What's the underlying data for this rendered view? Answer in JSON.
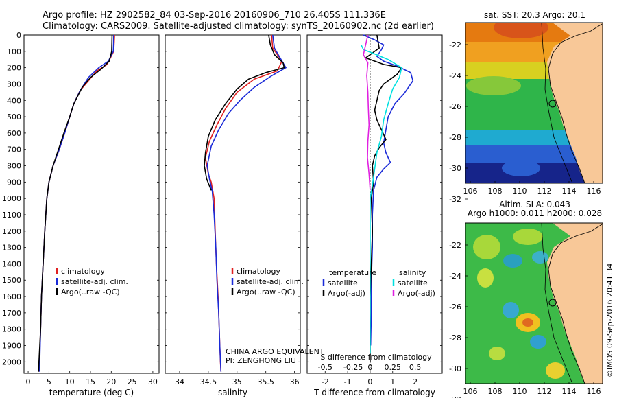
{
  "header": {
    "line1": "Argo profile: HZ 2902582_84 03-Sep-2016 20160906_710 26.405S 111.336E",
    "line2": "Climatology: CARS2009. Satellite-adjusted climatology: synTS_20160902.nc (2d earlier)"
  },
  "colors": {
    "climatology": "#e02020",
    "satellite_adj": "#1a2ad8",
    "argo": "#000000",
    "satellite_s": "#00e0e0",
    "argo_s": "#e020e0",
    "land": "#f8c898"
  },
  "chart_data": [
    {
      "type": "line",
      "id": "temperature",
      "xlabel": "temperature (deg C)",
      "ylabel": "",
      "xlim": [
        -1,
        31.5
      ],
      "ylim": [
        2070,
        0
      ],
      "xticks": [
        0,
        5,
        10,
        15,
        20,
        25,
        30
      ],
      "yticks": [
        0,
        100,
        200,
        300,
        400,
        500,
        600,
        700,
        800,
        900,
        1000,
        1100,
        1200,
        1300,
        1400,
        1500,
        1600,
        1700,
        1800,
        1900,
        2000
      ],
      "legend": [
        "climatology",
        "satellite-adj. clim.",
        "Argo(..raw -QC)"
      ],
      "legend_position": "lower-middle",
      "series": [
        {
          "name": "climatology",
          "color_key": "climatology",
          "points": [
            [
              20.8,
              0
            ],
            [
              20.6,
              100
            ],
            [
              19,
              180
            ],
            [
              16.5,
              220
            ],
            [
              14.5,
              280
            ],
            [
              12.5,
              340
            ],
            [
              11,
              420
            ],
            [
              10,
              500
            ],
            [
              8.8,
              600
            ],
            [
              7.5,
              700
            ],
            [
              6,
              800
            ],
            [
              5,
              900
            ],
            [
              4.5,
              1000
            ],
            [
              4,
              1200
            ],
            [
              3.6,
              1400
            ],
            [
              3.2,
              1600
            ],
            [
              3,
              1800
            ],
            [
              2.7,
              2000
            ],
            [
              2.6,
              2060
            ]
          ]
        },
        {
          "name": "satellite-adj. clim.",
          "color_key": "satellite_adj",
          "points": [
            [
              20.6,
              0
            ],
            [
              20.5,
              100
            ],
            [
              19.3,
              160
            ],
            [
              17,
              200
            ],
            [
              14.5,
              260
            ],
            [
              12.5,
              340
            ],
            [
              11,
              420
            ],
            [
              10,
              500
            ],
            [
              8.8,
              600
            ],
            [
              7.5,
              700
            ],
            [
              6,
              800
            ],
            [
              5,
              900
            ],
            [
              4.5,
              1000
            ],
            [
              4,
              1200
            ],
            [
              3.6,
              1400
            ],
            [
              3.2,
              1600
            ],
            [
              3,
              1800
            ],
            [
              2.8,
              2000
            ],
            [
              2.7,
              2060
            ]
          ]
        },
        {
          "name": "Argo(..raw -QC)",
          "color_key": "argo",
          "points": [
            [
              20.2,
              0
            ],
            [
              20.1,
              100
            ],
            [
              19.5,
              160
            ],
            [
              17.5,
              210
            ],
            [
              15,
              260
            ],
            [
              13,
              320
            ],
            [
              11,
              420
            ],
            [
              10,
              500
            ],
            [
              8.6,
              600
            ],
            [
              7.3,
              700
            ],
            [
              6,
              800
            ],
            [
              5,
              900
            ],
            [
              4.5,
              1000
            ],
            [
              4,
              1200
            ],
            [
              3.6,
              1400
            ],
            [
              3.2,
              1600
            ],
            [
              3,
              1800
            ],
            [
              2.6,
              2000
            ],
            [
              2.5,
              2060
            ]
          ]
        }
      ]
    },
    {
      "type": "line",
      "id": "salinity",
      "xlabel": "salinity",
      "ylabel": "",
      "xlim": [
        33.75,
        36.1
      ],
      "ylim": [
        2070,
        0
      ],
      "xticks": [
        34,
        34.5,
        35,
        35.5,
        36
      ],
      "legend": [
        "climatology",
        "satellite-adj. clim.",
        "Argo(..raw -QC)"
      ],
      "legend_position": "lower-right",
      "annotations": [
        "CHINA ARGO EQUIVALENT",
        "PI: ZENGHONG LIU"
      ],
      "series": [
        {
          "name": "climatology",
          "color_key": "climatology",
          "points": [
            [
              35.6,
              0
            ],
            [
              35.62,
              80
            ],
            [
              35.78,
              160
            ],
            [
              35.7,
              220
            ],
            [
              35.3,
              270
            ],
            [
              35,
              350
            ],
            [
              34.8,
              450
            ],
            [
              34.65,
              550
            ],
            [
              34.52,
              650
            ],
            [
              34.45,
              750
            ],
            [
              34.5,
              850
            ],
            [
              34.55,
              900
            ],
            [
              34.6,
              1000
            ],
            [
              34.62,
              1200
            ],
            [
              34.64,
              1400
            ],
            [
              34.67,
              1600
            ],
            [
              34.69,
              1800
            ],
            [
              34.71,
              2000
            ],
            [
              34.72,
              2060
            ]
          ]
        },
        {
          "name": "satellite-adj. clim.",
          "color_key": "satellite_adj",
          "points": [
            [
              35.62,
              0
            ],
            [
              35.65,
              80
            ],
            [
              35.85,
              200
            ],
            [
              35.6,
              250
            ],
            [
              35.3,
              320
            ],
            [
              35.05,
              400
            ],
            [
              34.85,
              480
            ],
            [
              34.68,
              580
            ],
            [
              34.55,
              680
            ],
            [
              34.48,
              800
            ],
            [
              34.52,
              880
            ],
            [
              34.57,
              960
            ],
            [
              34.6,
              1100
            ],
            [
              34.63,
              1300
            ],
            [
              34.65,
              1500
            ],
            [
              34.68,
              1700
            ],
            [
              34.7,
              1900
            ],
            [
              34.72,
              2060
            ]
          ]
        },
        {
          "name": "Argo(..raw -QC)",
          "color_key": "argo",
          "points": [
            [
              35.55,
              0
            ],
            [
              35.58,
              60
            ],
            [
              35.65,
              120
            ],
            [
              35.8,
              170
            ],
            [
              35.82,
              200
            ],
            [
              35.5,
              230
            ],
            [
              35.2,
              270
            ],
            [
              35,
              330
            ],
            [
              34.8,
              420
            ],
            [
              34.62,
              520
            ],
            [
              34.5,
              620
            ],
            [
              34.45,
              720
            ],
            [
              34.43,
              800
            ],
            [
              34.47,
              880
            ],
            [
              34.55,
              950
            ]
          ]
        }
      ]
    },
    {
      "type": "line",
      "id": "difference",
      "xlabel": "T difference from climatology",
      "xlabel_top": "S difference from climatology",
      "ylabel": "",
      "xlim": [
        -2.8,
        3.2
      ],
      "ylim": [
        2070,
        0
      ],
      "xticks": [
        -2,
        -1,
        0,
        1,
        2
      ],
      "xtick_labels_s": [
        "-0.5",
        "-0.25",
        "0",
        "0.25",
        "0.5"
      ],
      "legend": {
        "temperature": "temperature",
        "salinity": "salinity",
        "items": [
          "satellite",
          "Argo(-adj)",
          "satellite",
          "Argo(-adj)"
        ]
      },
      "legend_position": "lower-middle",
      "series": [
        {
          "name": "satellite",
          "color_key": "satellite_adj",
          "points": [
            [
              -0.3,
              0
            ],
            [
              0.2,
              30
            ],
            [
              0.6,
              60
            ],
            [
              0.5,
              90
            ],
            [
              0.3,
              130
            ],
            [
              0.6,
              160
            ],
            [
              1.2,
              190
            ],
            [
              1.8,
              230
            ],
            [
              1.9,
              280
            ],
            [
              1.5,
              360
            ],
            [
              1.1,
              420
            ],
            [
              0.8,
              500
            ],
            [
              0.7,
              580
            ],
            [
              0.6,
              660
            ],
            [
              0.7,
              720
            ],
            [
              0.9,
              780
            ],
            [
              0.6,
              820
            ],
            [
              0.3,
              870
            ],
            [
              0.15,
              950
            ],
            [
              0.1,
              1100
            ],
            [
              0.1,
              1300
            ],
            [
              0.05,
              1500
            ],
            [
              0.05,
              1700
            ],
            [
              0.02,
              1900
            ]
          ]
        },
        {
          "name": "Argo(-adj)",
          "color_key": "argo",
          "points": [
            [
              0.3,
              0
            ],
            [
              0.4,
              80
            ],
            [
              -0.2,
              140
            ],
            [
              0.6,
              180
            ],
            [
              1.4,
              200
            ],
            [
              1.2,
              240
            ],
            [
              0.9,
              270
            ],
            [
              0.6,
              300
            ],
            [
              0.4,
              340
            ],
            [
              0.3,
              400
            ],
            [
              0.2,
              460
            ],
            [
              0.3,
              520
            ],
            [
              0.5,
              580
            ],
            [
              0.7,
              640
            ],
            [
              0.4,
              690
            ],
            [
              0.2,
              740
            ],
            [
              0.1,
              800
            ],
            [
              0.15,
              900
            ],
            [
              0.05,
              1000
            ],
            [
              0.1,
              1200
            ],
            [
              0.05,
              1400
            ],
            [
              0,
              1600
            ],
            [
              0,
              1800
            ],
            [
              0,
              2000
            ]
          ]
        },
        {
          "name": "satellite (S)",
          "color_key": "satellite_s",
          "points": [
            [
              -0.4,
              60
            ],
            [
              -0.3,
              90
            ],
            [
              0.1,
              110
            ],
            [
              0.8,
              150
            ],
            [
              1.4,
              200
            ],
            [
              1.3,
              260
            ],
            [
              1.0,
              330
            ],
            [
              0.8,
              420
            ],
            [
              0.6,
              520
            ],
            [
              0.5,
              620
            ],
            [
              0.3,
              720
            ],
            [
              0.2,
              820
            ],
            [
              0.1,
              920
            ],
            [
              0,
              1000
            ],
            [
              0,
              1200
            ],
            [
              0,
              1400
            ],
            [
              0,
              1600
            ],
            [
              0,
              1800
            ],
            [
              0,
              1950
            ]
          ]
        },
        {
          "name": "Argo(-adj) (S)",
          "color_key": "argo_s",
          "points": [
            [
              -0.1,
              0
            ],
            [
              -0.3,
              120
            ],
            [
              -0.1,
              170
            ],
            [
              -0.15,
              250
            ],
            [
              -0.1,
              350
            ],
            [
              -0.08,
              450
            ],
            [
              -0.05,
              550
            ],
            [
              -0.1,
              650
            ],
            [
              -0.12,
              750
            ],
            [
              -0.05,
              850
            ],
            [
              0,
              950
            ]
          ]
        }
      ]
    }
  ],
  "maps": [
    {
      "title": "sat. SST: 20.3  Argo: 20.1",
      "xticks": [
        "106",
        "108",
        "110",
        "112",
        "114",
        "116"
      ],
      "yticks": [
        "-22",
        "-24",
        "-26",
        "-28",
        "-30",
        "-32"
      ]
    },
    {
      "title_line1": "Altim. SLA: 0.043",
      "title_line2": "Argo h1000: 0.011  h2000: 0.028",
      "xticks": [
        "106",
        "108",
        "110",
        "112",
        "114",
        "116"
      ],
      "yticks": [
        "-22",
        "-24",
        "-26",
        "-28",
        "-30",
        "-32"
      ]
    }
  ],
  "footer": {
    "credit": "©IMOS 09-Sep-2016 20:41:34"
  }
}
